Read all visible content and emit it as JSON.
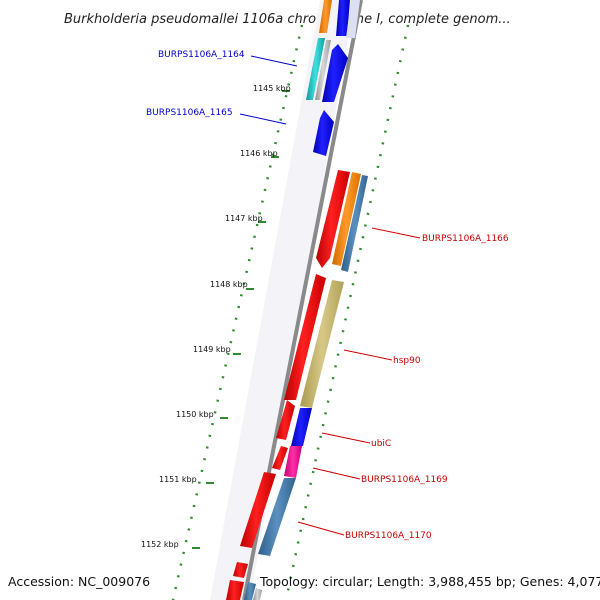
{
  "title": "Burkholderia pseudomallei 1106a chromosome I, complete genom...",
  "footer": {
    "accession": "Accession: NC_009076",
    "topology": "Topology: circular; Length: 3,988,455 bp; Genes: 4,077"
  },
  "kbp_labels": [
    "1145 kbp",
    "1146 kbp",
    "1147 kbp",
    "1148 kbp",
    "1149 kbp",
    "1150 kbp",
    "1151 kbp",
    "1152 kbp"
  ],
  "gene_labels": [
    {
      "text": "BURPS1106A_1164",
      "color": "#0000cc"
    },
    {
      "text": "BURPS1106A_1165",
      "color": "#0000cc"
    },
    {
      "text": "BURPS1106A_1166",
      "color": "#cc0000"
    },
    {
      "text": "hsp90",
      "color": "#cc0000"
    },
    {
      "text": "ubiC",
      "color": "#cc0000"
    },
    {
      "text": "BURPS1106A_1169",
      "color": "#cc0000"
    },
    {
      "text": "BURPS1106A_1170",
      "color": "#cc0000"
    }
  ],
  "colors": {
    "forward_gene": "#ee0000",
    "reverse_gene": "#0000ee",
    "backbone": "#888888",
    "tick_dots": "#2e8b2e",
    "orange_track": "#ff8c1a",
    "steelblue_track": "#4682b4",
    "khaki_track": "#c8b870",
    "magenta_track": "#ee1090",
    "cyan_track": "#20c0c0"
  }
}
